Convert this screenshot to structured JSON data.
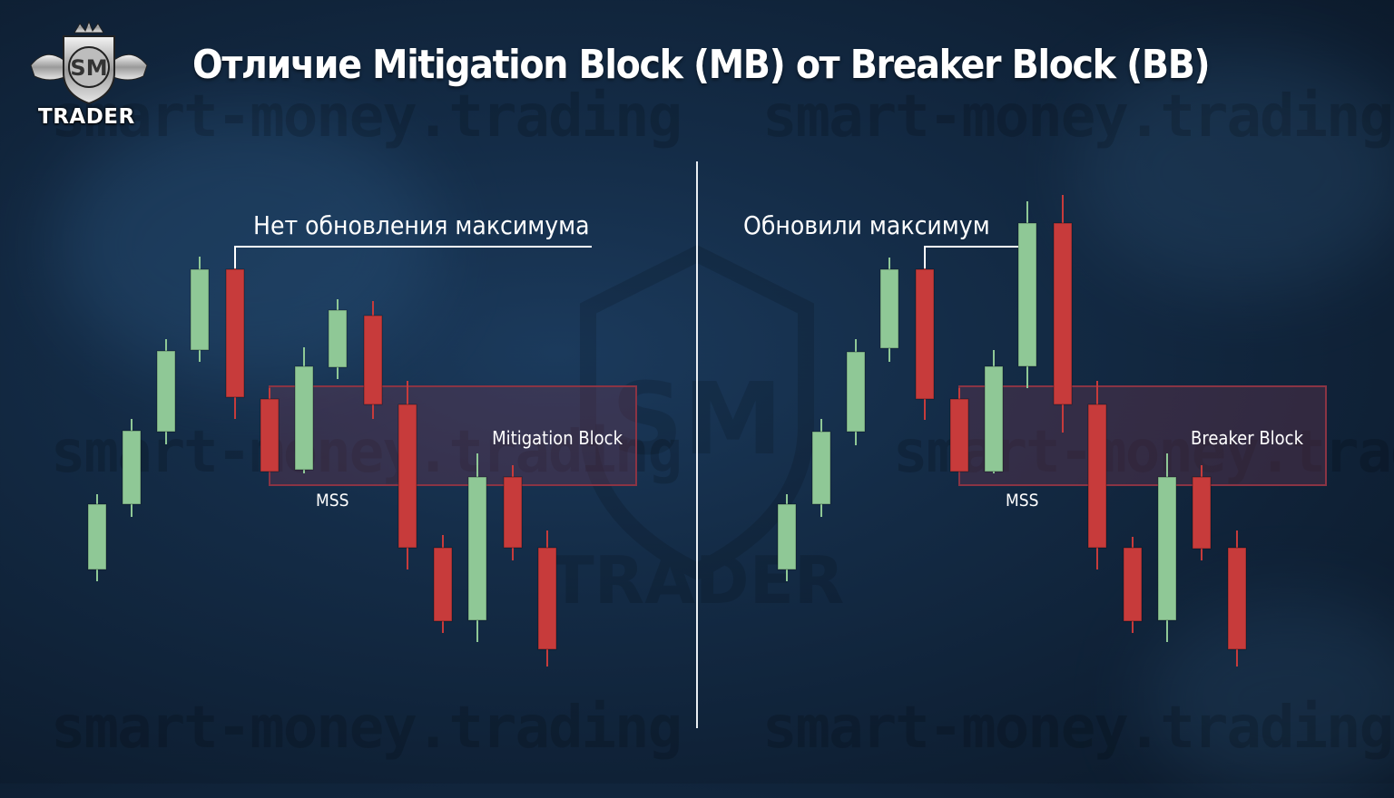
{
  "title": "Отличие Mitigation Block (MB) от Breaker Block (BB)",
  "logo": {
    "monogram": "SM",
    "text": "TRADER"
  },
  "watermark": "smart-money.trading",
  "colors": {
    "bull": "#8fc896",
    "bear": "#c73b3b",
    "zone_fill": "rgba(125,55,80,0.32)",
    "zone_border": "#8a3444"
  },
  "left_panel": {
    "annotation": "Нет обновления максимума",
    "mss_label": "MSS",
    "zone_label": "Mitigation Block"
  },
  "right_panel": {
    "annotation": "Обновили максимум",
    "mss_label": "MSS",
    "zone_label": "Breaker Block"
  }
}
